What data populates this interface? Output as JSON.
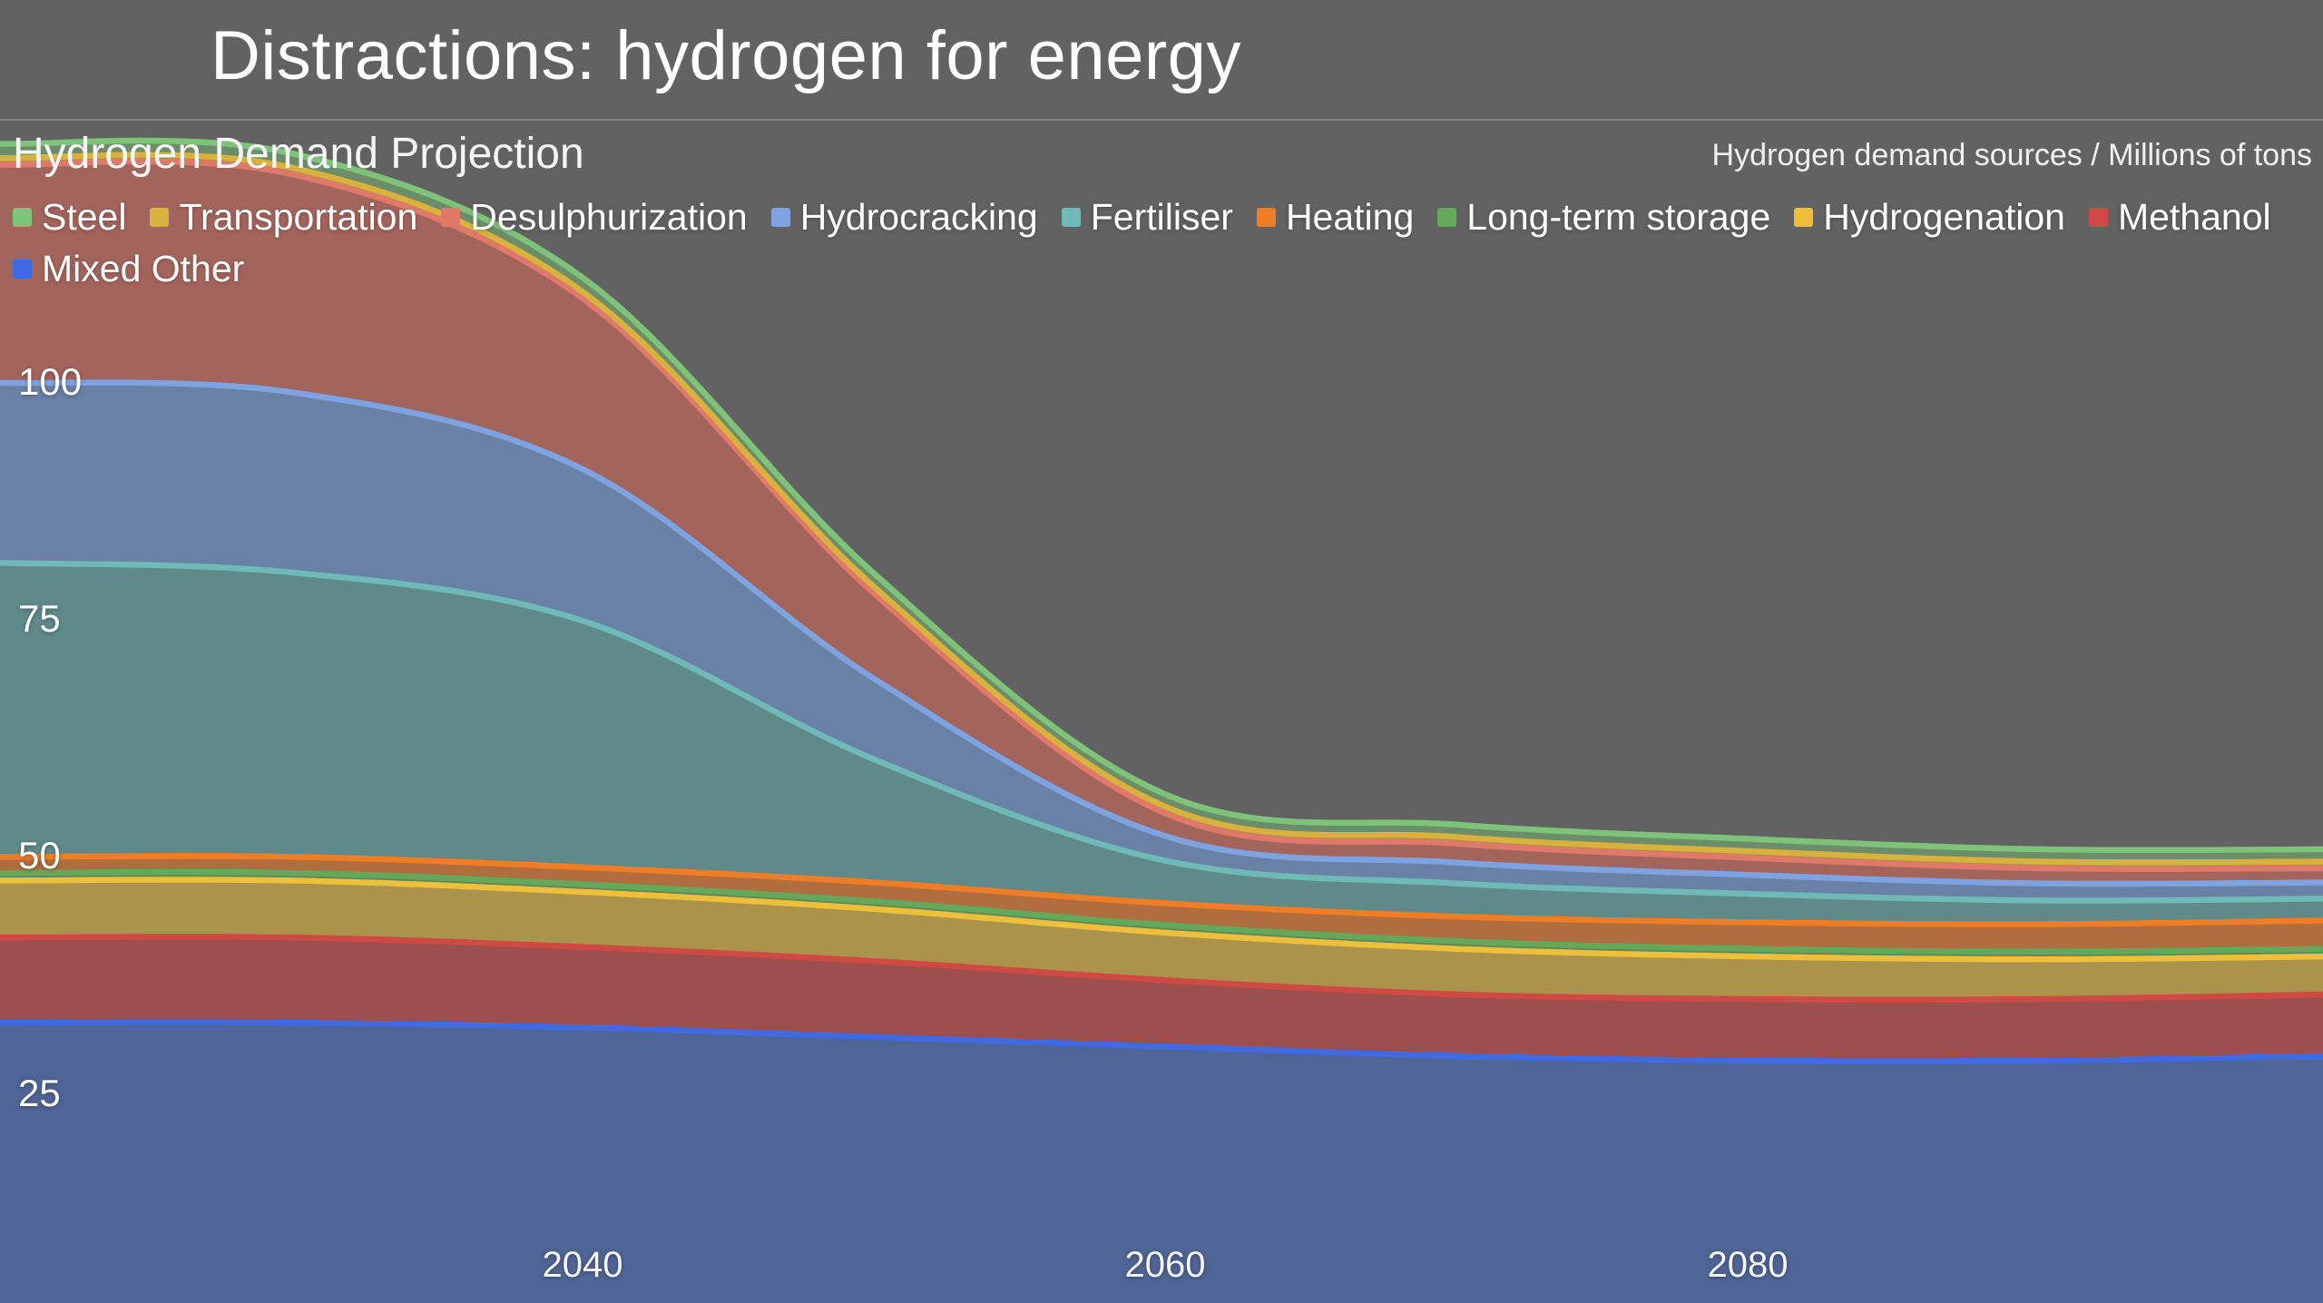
{
  "page": {
    "title": "Distractions: hydrogen for energy"
  },
  "chart": {
    "title": "Hydrogen Demand Projection",
    "units_label": "Hydrogen demand sources / Millions of tons"
  },
  "chart_data": {
    "type": "area",
    "stacked": true,
    "title": "Hydrogen Demand Projection",
    "ylabel": "Millions of tons",
    "background": "#626262",
    "grid": false,
    "legend_position": "top",
    "x": [
      2020,
      2030,
      2040,
      2050,
      2060,
      2070,
      2080,
      2090,
      2100
    ],
    "x_ticks": [
      2040,
      2060,
      2080
    ],
    "y_ticks": [
      25,
      50,
      75,
      100
    ],
    "x_range": [
      2020,
      2100
    ],
    "y_range": [
      0,
      137
    ],
    "legend": [
      {
        "label": "Steel",
        "color": "#7fc279"
      },
      {
        "label": "Transportation",
        "color": "#d9b23d"
      },
      {
        "label": "Desulphurization",
        "color": "#e0796a"
      },
      {
        "label": "Hydrocracking",
        "color": "#7fa3e0"
      },
      {
        "label": "Fertiliser",
        "color": "#6fb9b6"
      },
      {
        "label": "Heating",
        "color": "#ef7d26"
      },
      {
        "label": "Long-term storage",
        "color": "#64a85c"
      },
      {
        "label": "Hydrogenation",
        "color": "#edbf3b"
      },
      {
        "label": "Methanol",
        "color": "#cf4a44"
      },
      {
        "label": "Mixed Other",
        "color": "#4169e1"
      }
    ],
    "series_note": "series listed bottom-to-top of the stack; values in millions of tons",
    "series": [
      {
        "name": "Mixed Other",
        "color": "#4668b8",
        "line_color": "#4169e1",
        "values": [
          32.5,
          32.5,
          32.0,
          31.0,
          30.0,
          29.0,
          28.5,
          28.5,
          29.0
        ]
      },
      {
        "name": "Methanol",
        "color": "#c0443f",
        "line_color": "#cf4a44",
        "values": [
          9.0,
          9.0,
          8.5,
          8.0,
          7.0,
          6.5,
          6.5,
          6.5,
          6.5
        ]
      },
      {
        "name": "Hydrogenation",
        "color": "#d9b23d",
        "line_color": "#edbf3b",
        "values": [
          6.0,
          6.0,
          5.8,
          5.5,
          5.0,
          4.8,
          4.5,
          4.2,
          4.0
        ]
      },
      {
        "name": "Long-term storage",
        "color": "#5f9e55",
        "line_color": "#64a85c",
        "values": [
          0.8,
          0.8,
          0.8,
          0.8,
          0.8,
          0.8,
          0.8,
          0.8,
          0.8
        ]
      },
      {
        "name": "Heating",
        "color": "#e0762a",
        "line_color": "#ef7d26",
        "values": [
          1.7,
          1.7,
          1.8,
          2.0,
          2.3,
          2.6,
          2.8,
          2.9,
          3.0
        ]
      },
      {
        "name": "Fertiliser",
        "color": "#5fa3a3",
        "line_color": "#6fb9b6",
        "values": [
          31.0,
          30.0,
          26.0,
          13.0,
          4.5,
          3.5,
          3.0,
          2.5,
          2.3
        ]
      },
      {
        "name": "Hydrocracking",
        "color": "#7094d1",
        "line_color": "#7fa3e0",
        "values": [
          19.0,
          19.0,
          16.0,
          8.5,
          2.6,
          2.2,
          2.0,
          1.8,
          1.7
        ]
      },
      {
        "name": "Desulphurization",
        "color": "#cc6659",
        "line_color": "#e0796a",
        "values": [
          23.0,
          23.0,
          18.0,
          9.0,
          2.4,
          2.0,
          1.8,
          1.6,
          1.5
        ]
      },
      {
        "name": "Transportation",
        "color": "#c9a83d",
        "line_color": "#d9b23d",
        "values": [
          0.7,
          0.7,
          0.7,
          0.7,
          0.7,
          0.7,
          0.7,
          0.7,
          0.7
        ]
      },
      {
        "name": "Steel",
        "color": "#72a86f",
        "line_color": "#7fc279",
        "values": [
          1.5,
          1.5,
          1.5,
          1.4,
          1.3,
          1.3,
          1.3,
          1.3,
          1.3
        ]
      }
    ]
  }
}
